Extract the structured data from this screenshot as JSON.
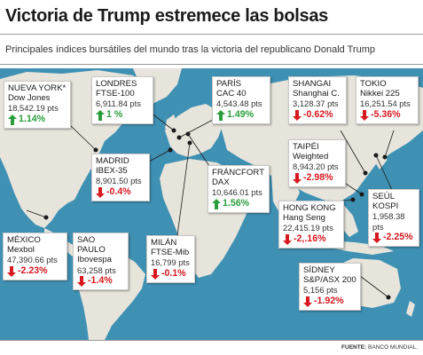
{
  "title": "Victoria de Trump estremece las bolsas",
  "subtitle": "Principales índices bursátiles del mundo tras la victoria del republicano Donald Trump",
  "source": {
    "label": "FUENTE:",
    "text": "BANCO MUNDIAL."
  },
  "colors": {
    "ocean": "#3f91b4",
    "land": "#e7e4db",
    "up": "#2a9d3a",
    "down": "#d71920"
  },
  "markets": [
    {
      "id": "nueva-york",
      "city": "NUEVA YORK",
      "note": "*",
      "index": "Dow Jones",
      "value": "18,542.19 pts",
      "change": "1.14%",
      "direction": "up"
    },
    {
      "id": "londres",
      "city": "LONDRES",
      "index": "FTSE-100",
      "value": "6,911.84 pts",
      "change": "1 %",
      "direction": "up"
    },
    {
      "id": "paris",
      "city": "PARÍS",
      "index": "CAC 40",
      "value": "4,543.48 pts",
      "change": "1.49%",
      "direction": "up"
    },
    {
      "id": "shangai",
      "city": "SHANGAI",
      "index": "Shanghai C.",
      "value": "3,128.37  pts",
      "change": "-0.62%",
      "direction": "down"
    },
    {
      "id": "tokio",
      "city": "TOKIO",
      "index": "Nikkei 225",
      "value": "16,251.54 pts",
      "change": "-5.36%",
      "direction": "down"
    },
    {
      "id": "madrid",
      "city": "MADRID",
      "index": "IBEX-35",
      "value": "8,901.50 pts",
      "change": "-0.4%",
      "direction": "down"
    },
    {
      "id": "taipei",
      "city": "TAIPÉI",
      "index": "Weighted",
      "value": "8,943.20  pts",
      "change": "-2.98%",
      "direction": "down"
    },
    {
      "id": "francfort",
      "city": "FRÁNCFORT",
      "index": "DAX",
      "value": "10,646.01 pts",
      "change": "1.56%",
      "direction": "up"
    },
    {
      "id": "hong-kong",
      "city": "HONG KONG",
      "index": "Hang Seng",
      "value": "22,415.19 pts",
      "change": "-2,.16%",
      "direction": "down"
    },
    {
      "id": "seul",
      "city": "SEÚL",
      "index": "KOSPI",
      "value": "1,958.38 pts",
      "change": "-2.25%",
      "direction": "down"
    },
    {
      "id": "mexico",
      "city": "MÉXICO",
      "index": "Mexbol",
      "value": "47,390.66 pts",
      "change": "-2.23%",
      "direction": "down"
    },
    {
      "id": "sao-paulo",
      "city": "SAO PAULO",
      "index": "Ibovespa",
      "value": "63,258 pts",
      "change": "-1.4%",
      "direction": "down"
    },
    {
      "id": "milan",
      "city": "MILÁN",
      "index": "FTSE-Mib",
      "value": "16,799 pts",
      "change": "-0.1%",
      "direction": "down"
    },
    {
      "id": "sidney",
      "city": "SÍDNEY",
      "index": "S&P/ASX 200",
      "value": "5,156 pts",
      "change": "-1.92%",
      "direction": "down"
    }
  ]
}
